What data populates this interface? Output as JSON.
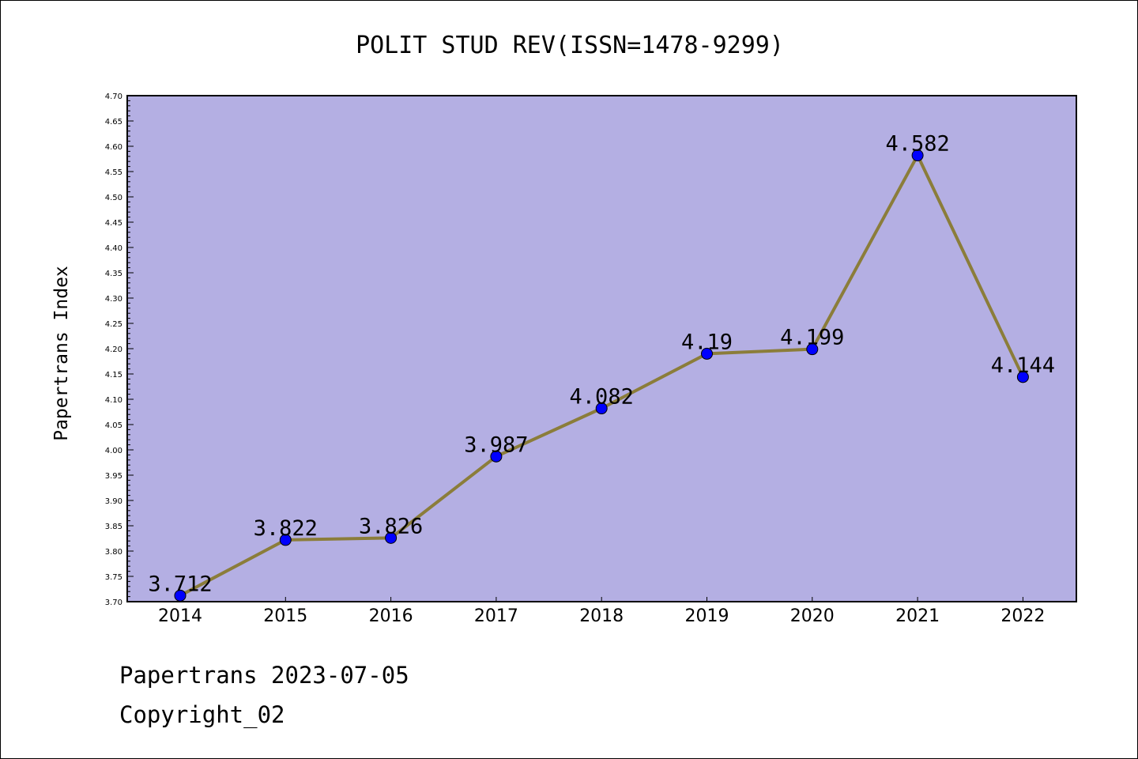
{
  "chart_data": {
    "type": "line",
    "title": "POLIT STUD REV(ISSN=1478-9299)",
    "xlabel": "",
    "ylabel": "Papertrans Index",
    "categories": [
      "2014",
      "2015",
      "2016",
      "2017",
      "2018",
      "2019",
      "2020",
      "2021",
      "2022"
    ],
    "values": [
      3.712,
      3.822,
      3.826,
      3.987,
      4.082,
      4.19,
      4.199,
      4.582,
      4.144
    ],
    "data_labels": [
      "3.712",
      "3.822",
      "3.826",
      "3.987",
      "4.082",
      "4.19",
      "4.199",
      "4.582",
      "4.144"
    ],
    "ylim": [
      3.7,
      4.7
    ],
    "ytick_labels": [
      "3.70",
      "3.75",
      "3.80",
      "3.85",
      "3.90",
      "3.95",
      "4.00",
      "4.05",
      "4.10",
      "4.15",
      "4.20",
      "4.25",
      "4.30",
      "4.35",
      "4.40",
      "4.45",
      "4.50",
      "4.55",
      "4.60",
      "4.65",
      "4.70"
    ],
    "grid": false,
    "legend": "none",
    "colors": {
      "plot_background": "#b4afe3",
      "line": "#8b7d3a",
      "marker": "#0000ff"
    }
  },
  "footer": {
    "source": "Papertrans 2023-07-05",
    "copyright": "Copyright_02"
  }
}
